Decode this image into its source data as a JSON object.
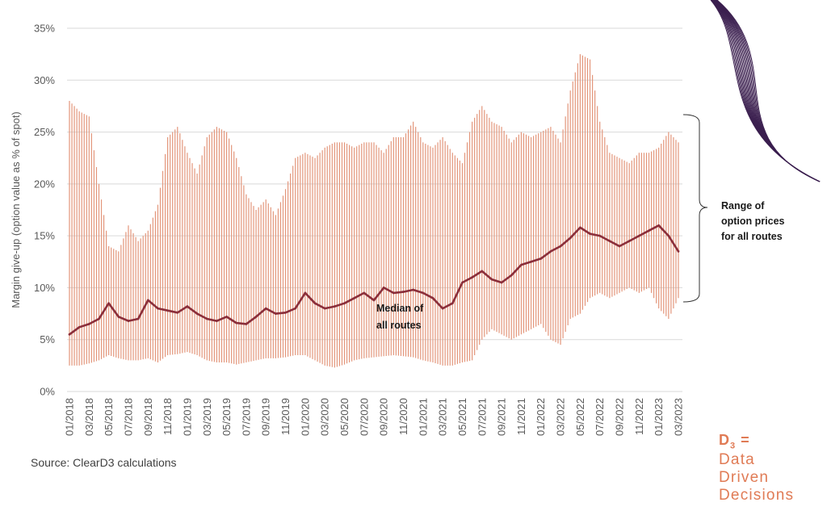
{
  "chart_data": {
    "type": "bar",
    "subtype": "range-bars-with-median-line",
    "ylabel": "Margin give-up (option value as % of spot)",
    "y_ticks": [
      "0%",
      "5%",
      "10%",
      "15%",
      "20%",
      "25%",
      "30%",
      "35%"
    ],
    "ylim": [
      0,
      35
    ],
    "x_ticks": [
      "01/2018",
      "03/2018",
      "05/2018",
      "07/2018",
      "09/2018",
      "11/2018",
      "01/2019",
      "03/2019",
      "05/2019",
      "07/2019",
      "09/2019",
      "11/2019",
      "01/2020",
      "03/2020",
      "05/2020",
      "07/2020",
      "09/2020",
      "11/2020",
      "01/2021",
      "03/2021",
      "05/2021",
      "07/2021",
      "09/2021",
      "11/2021",
      "01/2022",
      "03/2022",
      "05/2022",
      "07/2022",
      "09/2022",
      "11/2022",
      "01/2023",
      "03/2023"
    ],
    "grid": true,
    "colors": {
      "range": "#E3967B",
      "median": "#8B2E3A",
      "grid": "#D9D9D9"
    },
    "series": [
      {
        "name": "Median of all routes",
        "x": [
          "01/2018",
          "02/2018",
          "03/2018",
          "04/2018",
          "05/2018",
          "06/2018",
          "07/2018",
          "08/2018",
          "09/2018",
          "10/2018",
          "11/2018",
          "12/2018",
          "01/2019",
          "02/2019",
          "03/2019",
          "04/2019",
          "05/2019",
          "06/2019",
          "07/2019",
          "08/2019",
          "09/2019",
          "10/2019",
          "11/2019",
          "12/2019",
          "01/2020",
          "02/2020",
          "03/2020",
          "04/2020",
          "05/2020",
          "06/2020",
          "07/2020",
          "08/2020",
          "09/2020",
          "10/2020",
          "11/2020",
          "12/2020",
          "01/2021",
          "02/2021",
          "03/2021",
          "04/2021",
          "05/2021",
          "06/2021",
          "07/2021",
          "08/2021",
          "09/2021",
          "10/2021",
          "11/2021",
          "12/2021",
          "01/2022",
          "02/2022",
          "03/2022",
          "04/2022",
          "05/2022",
          "06/2022",
          "07/2022",
          "08/2022",
          "09/2022",
          "10/2022",
          "11/2022",
          "12/2022",
          "01/2023",
          "02/2023",
          "03/2023"
        ],
        "values": [
          5.5,
          6.2,
          6.5,
          7.0,
          8.5,
          7.2,
          6.8,
          7.0,
          8.8,
          8.0,
          7.8,
          7.6,
          8.2,
          7.5,
          7.0,
          6.8,
          7.2,
          6.6,
          6.5,
          7.2,
          8.0,
          7.5,
          7.6,
          8.0,
          9.5,
          8.5,
          8.0,
          8.2,
          8.5,
          9.0,
          9.5,
          8.8,
          10.0,
          9.5,
          9.6,
          9.8,
          9.5,
          9.0,
          8.0,
          8.5,
          10.5,
          11.0,
          11.6,
          10.8,
          10.5,
          11.2,
          12.2,
          12.5,
          12.8,
          13.5,
          14.0,
          14.8,
          15.8,
          15.2,
          15.0,
          14.5,
          14.0,
          14.5,
          15.0,
          15.5,
          16.0,
          15.0,
          13.5
        ]
      },
      {
        "name": "Range of option prices for all routes",
        "x": [
          "01/2018",
          "02/2018",
          "03/2018",
          "04/2018",
          "05/2018",
          "06/2018",
          "07/2018",
          "08/2018",
          "09/2018",
          "10/2018",
          "11/2018",
          "12/2018",
          "01/2019",
          "02/2019",
          "03/2019",
          "04/2019",
          "05/2019",
          "06/2019",
          "07/2019",
          "08/2019",
          "09/2019",
          "10/2019",
          "11/2019",
          "12/2019",
          "01/2020",
          "02/2020",
          "03/2020",
          "04/2020",
          "05/2020",
          "06/2020",
          "07/2020",
          "08/2020",
          "09/2020",
          "10/2020",
          "11/2020",
          "12/2020",
          "01/2021",
          "02/2021",
          "03/2021",
          "04/2021",
          "05/2021",
          "06/2021",
          "07/2021",
          "08/2021",
          "09/2021",
          "10/2021",
          "11/2021",
          "12/2021",
          "01/2022",
          "02/2022",
          "03/2022",
          "04/2022",
          "05/2022",
          "06/2022",
          "07/2022",
          "08/2022",
          "09/2022",
          "10/2022",
          "11/2022",
          "12/2022",
          "01/2023",
          "02/2023",
          "03/2023"
        ],
        "low": [
          2.5,
          2.5,
          2.7,
          3.0,
          3.5,
          3.2,
          3.0,
          3.0,
          3.2,
          2.8,
          3.5,
          3.6,
          3.8,
          3.5,
          3.0,
          2.8,
          2.8,
          2.6,
          2.8,
          3.0,
          3.2,
          3.2,
          3.3,
          3.5,
          3.5,
          3.0,
          2.5,
          2.3,
          2.6,
          3.0,
          3.2,
          3.3,
          3.4,
          3.5,
          3.4,
          3.3,
          3.0,
          2.8,
          2.5,
          2.5,
          2.8,
          3.0,
          5.0,
          6.0,
          5.5,
          5.0,
          5.5,
          6.0,
          6.5,
          5.0,
          4.5,
          7.0,
          7.5,
          9.0,
          9.5,
          9.0,
          9.5,
          10.0,
          9.5,
          10.0,
          8.0,
          7.0,
          9.0
        ],
        "high": [
          28.0,
          27.0,
          26.5,
          20.0,
          14.0,
          13.5,
          16.0,
          14.5,
          15.5,
          18.0,
          24.5,
          25.5,
          23.0,
          21.0,
          24.5,
          25.5,
          25.0,
          22.5,
          19.0,
          17.5,
          18.5,
          17.0,
          19.5,
          22.5,
          23.0,
          22.5,
          23.5,
          24.0,
          24.0,
          23.5,
          24.0,
          24.0,
          23.0,
          24.5,
          24.5,
          26.0,
          24.0,
          23.5,
          24.5,
          23.0,
          22.0,
          26.0,
          27.5,
          26.0,
          25.5,
          24.0,
          25.0,
          24.5,
          25.0,
          25.5,
          24.0,
          29.0,
          32.5,
          32.0,
          26.0,
          23.0,
          22.5,
          22.0,
          23.0,
          23.0,
          23.5,
          25.0,
          24.0
        ]
      }
    ],
    "annotations": {
      "median_label": [
        "Median of",
        "all routes"
      ],
      "range_label": [
        "Range of",
        "option prices",
        "for all routes"
      ]
    }
  },
  "source": "Source: ClearD3 calculations",
  "brand": {
    "mark": "D",
    "sub": "3",
    "eq": "=",
    "lines": [
      "Data",
      "Driven",
      "Decisions"
    ]
  }
}
